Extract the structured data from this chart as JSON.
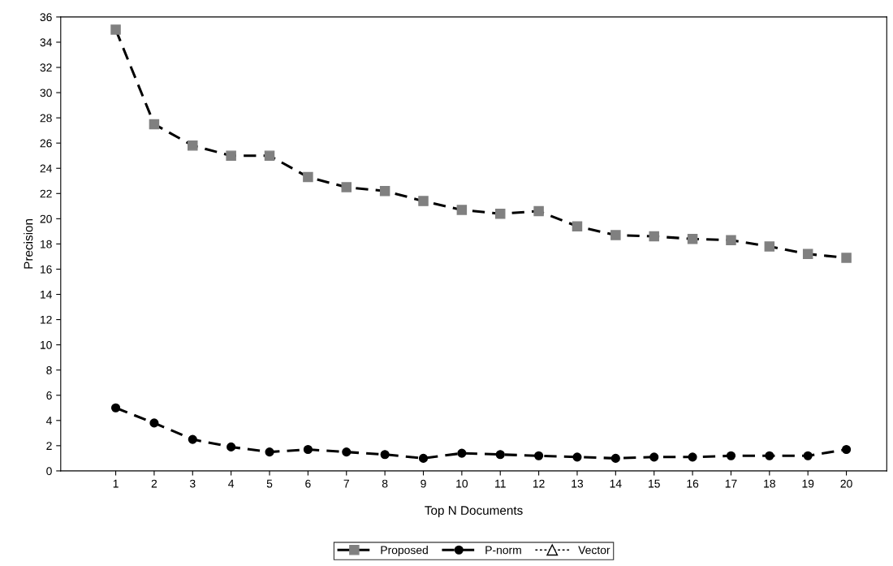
{
  "chart_data": {
    "type": "line",
    "xlabel": "Top N Documents",
    "ylabel": "Precision",
    "categories": [
      "1",
      "2",
      "3",
      "4",
      "5",
      "6",
      "7",
      "8",
      "9",
      "10",
      "11",
      "12",
      "13",
      "14",
      "15",
      "16",
      "17",
      "18",
      "19",
      "20"
    ],
    "ylim": [
      0,
      36
    ],
    "yticks": [
      0,
      2,
      4,
      6,
      8,
      10,
      12,
      14,
      16,
      18,
      20,
      22,
      24,
      26,
      28,
      30,
      32,
      34,
      36
    ],
    "grid": false,
    "legend": "bottom",
    "series": [
      {
        "name": "Proposed",
        "color": "#808080",
        "marker": "square",
        "line_style": "dashed",
        "values": [
          35,
          27.5,
          25.8,
          25.0,
          25.0,
          23.3,
          22.5,
          22.2,
          21.4,
          20.7,
          20.4,
          20.6,
          19.4,
          18.7,
          18.6,
          18.4,
          18.3,
          17.8,
          17.2,
          16.9
        ]
      },
      {
        "name": "P-norm",
        "color": "#000000",
        "marker": "circle",
        "line_style": "dashed",
        "values": [
          5.0,
          3.8,
          2.5,
          1.9,
          1.5,
          1.7,
          1.5,
          1.3,
          1.0,
          1.4,
          1.3,
          1.2,
          1.1,
          1.0,
          1.1,
          1.1,
          1.2,
          1.2,
          1.2,
          1.7
        ]
      },
      {
        "name": "Vector",
        "color": "#ffffff",
        "marker": "triangle",
        "line_style": "dotted",
        "values": [
          null,
          null,
          null,
          null,
          null,
          null,
          null,
          null,
          null,
          null,
          null,
          null,
          null,
          null,
          null,
          null,
          null,
          null,
          null,
          null
        ]
      }
    ]
  }
}
